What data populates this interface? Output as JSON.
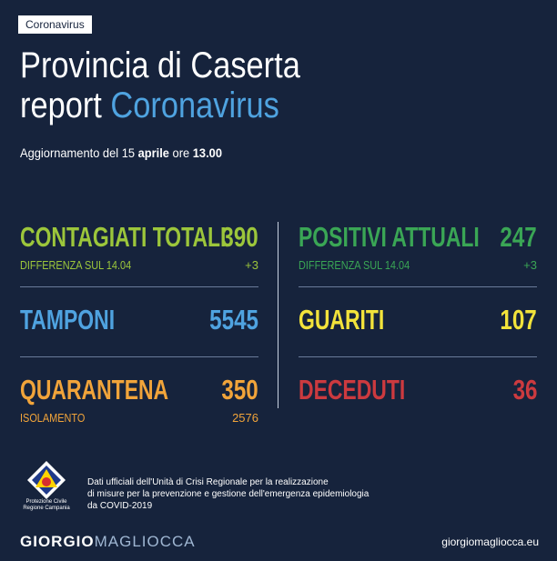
{
  "badge": "Coronavirus",
  "title": {
    "line1": "Provincia di Caserta",
    "line2_prefix": "report ",
    "line2_accent": "Coronavirus"
  },
  "updated": {
    "prefix": "Aggiornamento del 15 ",
    "month": "aprile",
    "mid": " ore ",
    "time": "13.00"
  },
  "stats": {
    "contagiati": {
      "label": "CONTAGIATI TOTALI",
      "value": "390",
      "sub_label": "DIFFERENZA SUL 14.04",
      "sub_value": "+3"
    },
    "tamponi": {
      "label": "TAMPONI",
      "value": "5545"
    },
    "quarantena": {
      "label": "QUARANTENA",
      "value": "350",
      "sub_label": "ISOLAMENTO",
      "sub_value": "2576"
    },
    "positivi": {
      "label": "POSITIVI ATTUALI",
      "value": "247",
      "sub_label": "DIFFERENZA SUL 14.04",
      "sub_value": "+3"
    },
    "guariti": {
      "label": "GUARITI",
      "value": "107"
    },
    "deceduti": {
      "label": "DECEDUTI",
      "value": "36"
    }
  },
  "colors": {
    "background": "#16233c",
    "contagiati": "#9cc63b",
    "positivi": "#3aa655",
    "tamponi": "#4fa3e0",
    "guariti": "#f2e33b",
    "quarantena": "#f1a43a",
    "deceduti": "#cc3a3f"
  },
  "footer": {
    "logo_icon": "protezione-civile-logo",
    "logo_line1": "Protezione Civile",
    "logo_line2": "Regione Campania",
    "source_line1": "Dati ufficiali dell'Unità di Crisi Regionale per la realizzazione",
    "source_line2": "di misure per la prevenzione e gestione dell'emergenza epidemiologia",
    "source_line3": "da COVID-2019",
    "brand_part1": "GIORGIO",
    "brand_part2": "MAGLIOCCA",
    "website": "giorgiomagliocca.eu"
  }
}
